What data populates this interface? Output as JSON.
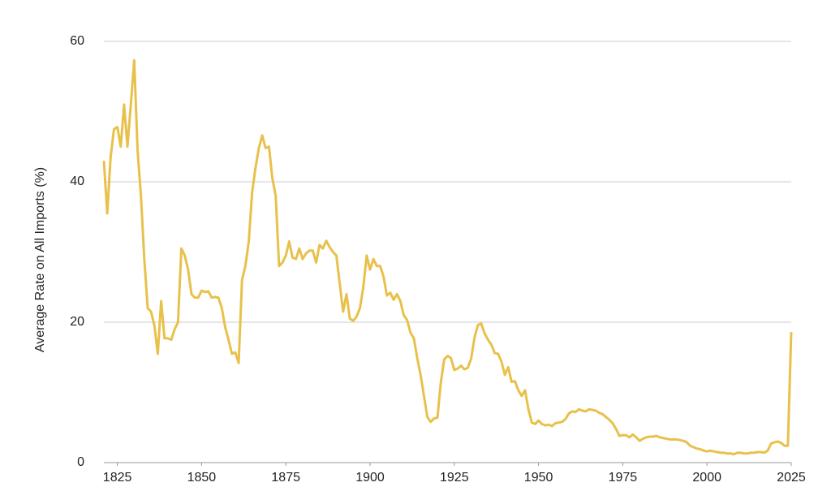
{
  "chart_data": {
    "type": "line",
    "y_label": "Average Rate on All Imports (%)",
    "xlim": [
      1821,
      2025
    ],
    "ylim": [
      0,
      60
    ],
    "xticks": [
      1825,
      1850,
      1875,
      1900,
      1925,
      1950,
      1975,
      2000,
      2025
    ],
    "yticks": [
      0,
      20,
      40,
      60
    ],
    "grid": true,
    "x": [
      1821,
      1822,
      1823,
      1824,
      1825,
      1826,
      1827,
      1828,
      1829,
      1830,
      1831,
      1832,
      1833,
      1834,
      1835,
      1836,
      1837,
      1838,
      1839,
      1840,
      1841,
      1842,
      1843,
      1844,
      1845,
      1846,
      1847,
      1848,
      1849,
      1850,
      1851,
      1852,
      1853,
      1854,
      1855,
      1856,
      1857,
      1858,
      1859,
      1860,
      1861,
      1862,
      1863,
      1864,
      1865,
      1866,
      1867,
      1868,
      1869,
      1870,
      1871,
      1872,
      1873,
      1874,
      1875,
      1876,
      1877,
      1878,
      1879,
      1880,
      1881,
      1882,
      1883,
      1884,
      1885,
      1886,
      1887,
      1888,
      1889,
      1890,
      1891,
      1892,
      1893,
      1894,
      1895,
      1896,
      1897,
      1898,
      1899,
      1900,
      1901,
      1902,
      1903,
      1904,
      1905,
      1906,
      1907,
      1908,
      1909,
      1910,
      1911,
      1912,
      1913,
      1914,
      1915,
      1916,
      1917,
      1918,
      1919,
      1920,
      1921,
      1922,
      1923,
      1924,
      1925,
      1926,
      1927,
      1928,
      1929,
      1930,
      1931,
      1932,
      1933,
      1934,
      1935,
      1936,
      1937,
      1938,
      1939,
      1940,
      1941,
      1942,
      1943,
      1944,
      1945,
      1946,
      1947,
      1948,
      1949,
      1950,
      1951,
      1952,
      1953,
      1954,
      1955,
      1956,
      1957,
      1958,
      1959,
      1960,
      1961,
      1962,
      1963,
      1964,
      1965,
      1966,
      1967,
      1968,
      1969,
      1970,
      1971,
      1972,
      1973,
      1974,
      1975,
      1976,
      1977,
      1978,
      1979,
      1980,
      1981,
      1982,
      1983,
      1984,
      1985,
      1986,
      1987,
      1988,
      1989,
      1990,
      1991,
      1992,
      1993,
      1994,
      1995,
      1996,
      1997,
      1998,
      1999,
      2000,
      2001,
      2002,
      2003,
      2004,
      2005,
      2006,
      2007,
      2008,
      2009,
      2010,
      2011,
      2012,
      2013,
      2014,
      2015,
      2016,
      2017,
      2018,
      2019,
      2020,
      2021,
      2022,
      2023,
      2024,
      2025
    ],
    "series": [
      {
        "color": "#e8c14b",
        "values": [
          43,
          35.5,
          43.5,
          47.5,
          47.8,
          45,
          51,
          45,
          51,
          57.3,
          44.5,
          38,
          29,
          22,
          21.5,
          19.5,
          15.5,
          23,
          17.7,
          17.7,
          17.5,
          19,
          20,
          30.5,
          29.5,
          27.5,
          24,
          23.5,
          23.5,
          24.5,
          24.3,
          24.4,
          23.5,
          23.6,
          23.5,
          22,
          19.3,
          17.5,
          15.5,
          15.7,
          14.2,
          26,
          28,
          31.5,
          38.5,
          42,
          44.8,
          46.6,
          44.8,
          45,
          40.5,
          38,
          28,
          28.5,
          29.5,
          31.5,
          29.2,
          29,
          30.5,
          29,
          29.8,
          30.2,
          30.2,
          28.5,
          31,
          30.5,
          31.6,
          30.7,
          30,
          29.5,
          25.5,
          21.5,
          24,
          20.5,
          20.2,
          20.8,
          22,
          25,
          29.5,
          27.5,
          29,
          28,
          28,
          26.5,
          23.8,
          24.2,
          23.2,
          24,
          23,
          21,
          20.3,
          18.5,
          17.7,
          14.9,
          12.5,
          9.5,
          6.5,
          5.8,
          6.3,
          6.4,
          11.4,
          14.7,
          15.2,
          14.9,
          13.2,
          13.4,
          13.8,
          13.3,
          13.5,
          14.8,
          17.8,
          19.6,
          19.8,
          18.4,
          17.5,
          16.8,
          15.6,
          15.5,
          14.4,
          12.5,
          13.6,
          11.5,
          11.6,
          10.3,
          9.5,
          10.3,
          7.6,
          5.7,
          5.5,
          6,
          5.5,
          5.3,
          5.4,
          5.2,
          5.6,
          5.7,
          5.8,
          6.2,
          7,
          7.3,
          7.2,
          7.6,
          7.4,
          7.3,
          7.6,
          7.5,
          7.4,
          7.1,
          6.9,
          6.5,
          6.1,
          5.6,
          4.8,
          3.8,
          3.9,
          3.9,
          3.6,
          4,
          3.6,
          3.1,
          3.4,
          3.6,
          3.7,
          3.7,
          3.8,
          3.6,
          3.5,
          3.4,
          3.3,
          3.3,
          3.3,
          3.2,
          3.1,
          2.9,
          2.4,
          2.2,
          2,
          1.9,
          1.7,
          1.6,
          1.7,
          1.6,
          1.5,
          1.4,
          1.4,
          1.3,
          1.3,
          1.2,
          1.4,
          1.4,
          1.3,
          1.3,
          1.4,
          1.4,
          1.5,
          1.5,
          1.4,
          1.7,
          2.7,
          2.9,
          3,
          2.8,
          2.4,
          2.4,
          18.6
        ]
      }
    ]
  }
}
